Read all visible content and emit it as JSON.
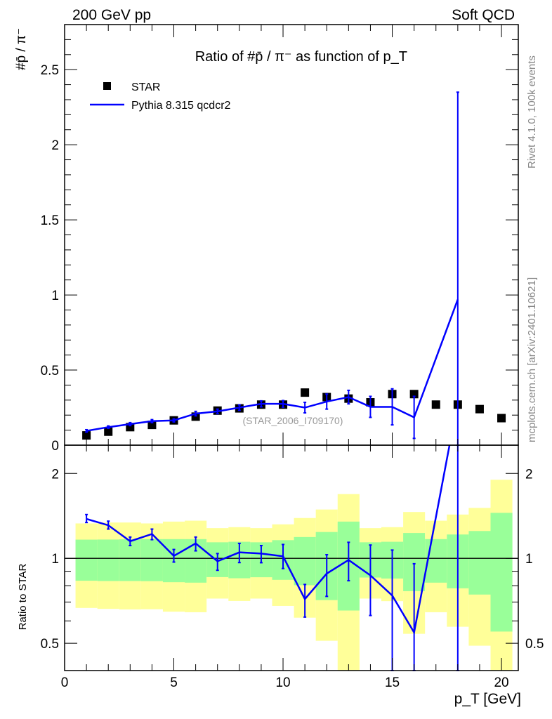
{
  "header": {
    "left": "200 GeV pp",
    "right": "Soft QCD"
  },
  "side_text": {
    "rivet": "Rivet 4.1.0,  100k events",
    "mcplots": "mcplots.cern.ch [arXiv:2401.10621]"
  },
  "colors": {
    "star": "#000000",
    "pythia": "#0000ff",
    "band_inner": "#99ff99",
    "band_outer": "#ffff99"
  },
  "chart_data": [
    {
      "type": "scatter",
      "title": "Ratio of #p̄ / π⁻ as function of p_T",
      "ylabel": "#p̄ / π⁻",
      "xlabel": "p_T [GeV]",
      "xlim": [
        0,
        20.77
      ],
      "ylim": [
        0,
        2.8
      ],
      "x_ticks": [
        "0",
        "5",
        "10",
        "15",
        "20"
      ],
      "y_ticks": [
        "0",
        "0.5",
        "1",
        "1.5",
        "2",
        "2.5"
      ],
      "watermark": "(STAR_2006_I709170)",
      "legend": {
        "placement": "top-left",
        "entries": [
          "STAR",
          "Pythia 8.315 qcdcr2"
        ]
      },
      "series": [
        {
          "name": "STAR",
          "style": "markers",
          "x": [
            1,
            2,
            3,
            4,
            5,
            6,
            7,
            8,
            9,
            10,
            11,
            12,
            13,
            14,
            15,
            16,
            17,
            18,
            19,
            20
          ],
          "y": [
            0.065,
            0.09,
            0.12,
            0.135,
            0.165,
            0.19,
            0.23,
            0.245,
            0.27,
            0.27,
            0.35,
            0.32,
            0.31,
            0.285,
            0.34,
            0.34,
            0.27,
            0.27,
            0.24,
            0.18
          ]
        },
        {
          "name": "Pythia 8.315 qcdcr2",
          "style": "line",
          "x": [
            1,
            2,
            3,
            4,
            5,
            6,
            7,
            8,
            9,
            10,
            11,
            12,
            13,
            14,
            15,
            16,
            18
          ],
          "y": [
            0.095,
            0.12,
            0.14,
            0.16,
            0.165,
            0.21,
            0.225,
            0.25,
            0.275,
            0.275,
            0.25,
            0.29,
            0.32,
            0.255,
            0.255,
            0.185,
            0.97
          ],
          "err": [
            0.008,
            0.008,
            0.01,
            0.01,
            0.01,
            0.015,
            0.015,
            0.018,
            0.02,
            0.022,
            0.035,
            0.05,
            0.045,
            0.07,
            0.12,
            0.14,
            1.38
          ]
        }
      ]
    },
    {
      "type": "line",
      "ylabel": "Ratio to STAR",
      "xlabel": "p_T [GeV]",
      "xlim": [
        0,
        20.77
      ],
      "ylim": [
        0.4,
        2.52
      ],
      "yscale": "log",
      "x_ticks": [
        "0",
        "5",
        "10",
        "15",
        "20"
      ],
      "y_ticks": [
        "0.5",
        "1",
        "2"
      ],
      "bands": {
        "x": [
          1,
          2,
          3,
          4,
          5,
          6,
          7,
          8,
          9,
          10,
          11,
          12,
          13,
          14,
          15,
          16,
          17,
          18,
          19,
          20
        ],
        "outer_hi": [
          1.33,
          1.34,
          1.34,
          1.33,
          1.35,
          1.36,
          1.28,
          1.29,
          1.28,
          1.32,
          1.39,
          1.49,
          1.69,
          1.28,
          1.29,
          1.46,
          1.36,
          1.43,
          1.51,
          1.9
        ],
        "outer_lo": [
          0.667,
          0.662,
          0.659,
          0.66,
          0.647,
          0.644,
          0.72,
          0.706,
          0.72,
          0.678,
          0.616,
          0.51,
          0.3,
          0.72,
          0.705,
          0.54,
          0.644,
          0.572,
          0.49,
          0.3
        ],
        "inner_hi": [
          1.165,
          1.166,
          1.168,
          1.17,
          1.17,
          1.17,
          1.14,
          1.145,
          1.14,
          1.16,
          1.19,
          1.24,
          1.35,
          1.14,
          1.145,
          1.23,
          1.17,
          1.215,
          1.25,
          1.45
        ],
        "inner_lo": [
          0.833,
          0.831,
          0.831,
          0.83,
          0.823,
          0.82,
          0.858,
          0.85,
          0.857,
          0.839,
          0.803,
          0.711,
          0.653,
          0.855,
          0.848,
          0.765,
          0.82,
          0.783,
          0.744,
          0.55
        ]
      },
      "series": [
        {
          "name": "Pythia 8.315 qcdcr2 / STAR",
          "x": [
            1,
            2,
            3,
            4,
            5,
            6,
            7,
            8,
            9,
            10,
            11,
            12,
            13,
            14,
            15,
            16,
            18
          ],
          "y": [
            1.38,
            1.31,
            1.15,
            1.22,
            1.02,
            1.13,
            0.977,
            1.05,
            1.04,
            1.017,
            0.717,
            0.883,
            0.987,
            0.87,
            0.738,
            0.546,
            3.6
          ],
          "err_hi": [
            1.43,
            1.355,
            1.19,
            1.27,
            1.075,
            1.19,
            1.04,
            1.13,
            1.11,
            1.12,
            0.808,
            1.03,
            1.14,
            1.115,
            1.07,
            0.957,
            10
          ],
          "err_lo": [
            1.34,
            1.27,
            1.11,
            1.165,
            0.97,
            1.063,
            0.907,
            0.966,
            0.965,
            0.92,
            0.619,
            0.733,
            0.833,
            0.627,
            0.2,
            0.2,
            0.2
          ]
        }
      ]
    }
  ]
}
